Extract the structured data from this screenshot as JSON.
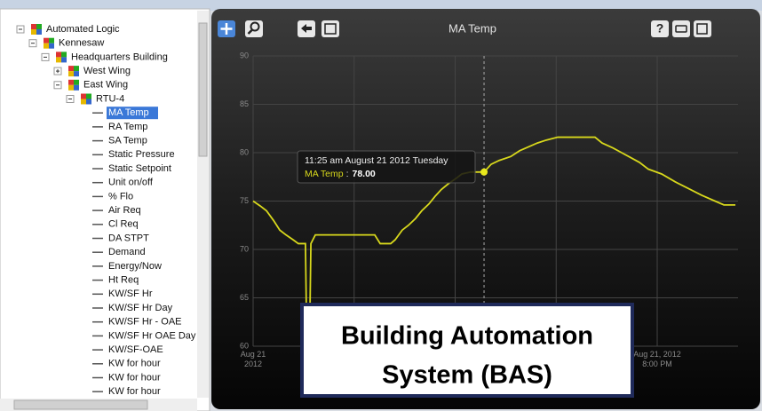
{
  "tree": [
    {
      "label": "Automated Logic",
      "children": [
        {
          "label": "Kennesaw",
          "children": [
            {
              "label": "Headquarters Building",
              "children": [
                {
                  "label": "West Wing",
                  "collapsed": true
                },
                {
                  "label": "East Wing",
                  "children": [
                    {
                      "label": "RTU-4",
                      "children": [
                        {
                          "label": "MA Temp",
                          "selected": true
                        },
                        {
                          "label": "RA Temp"
                        },
                        {
                          "label": "SA Temp"
                        },
                        {
                          "label": "Static Pressure"
                        },
                        {
                          "label": "Static Setpoint"
                        },
                        {
                          "label": "Unit on/off"
                        },
                        {
                          "label": "% Flo"
                        },
                        {
                          "label": "Air Req"
                        },
                        {
                          "label": "Cl Req"
                        },
                        {
                          "label": "DA STPT"
                        },
                        {
                          "label": "Demand"
                        },
                        {
                          "label": "Energy/Now"
                        },
                        {
                          "label": "Ht Req"
                        },
                        {
                          "label": "KW/SF Hr"
                        },
                        {
                          "label": "KW/SF Hr Day"
                        },
                        {
                          "label": "KW/SF Hr - OAE"
                        },
                        {
                          "label": "KW/SF Hr OAE Day"
                        },
                        {
                          "label": "KW/SF-OAE"
                        },
                        {
                          "label": "KW for hour"
                        },
                        {
                          "label": "KW for hour"
                        },
                        {
                          "label": "KW for hour"
                        }
                      ]
                    }
                  ]
                }
              ]
            }
          ]
        }
      ]
    }
  ],
  "toolbar": {
    "help_button": "?"
  },
  "chart_data": {
    "type": "line",
    "title": "MA Temp",
    "x": [
      0,
      0.35,
      0.66,
      1.01,
      1.32,
      1.63,
      1.98,
      2.24,
      2.59,
      2.64,
      2.81,
      2.86,
      3.08,
      6.02,
      6.29,
      6.81,
      7.03,
      7.38,
      7.69,
      8.04,
      8.35,
      8.7,
      9.01,
      9.32,
      9.67,
      10.02,
      10.33,
      10.77,
      11.43,
      11.78,
      12.18,
      12.75,
      13.19,
      13.63,
      14.07,
      14.51,
      15.08,
      16.92,
      17.27,
      17.8,
      18.24,
      18.68,
      19.12,
      19.56,
      20.22,
      20.88,
      21.54,
      22.2,
      22.86,
      23.3,
      23.87
    ],
    "series": [
      {
        "name": "MA Temp",
        "color": "#d8d81c",
        "values": [
          75,
          74.5,
          74,
          73,
          72,
          71.5,
          71,
          70.6,
          70.6,
          63,
          63,
          70.6,
          71.5,
          71.5,
          70.6,
          70.6,
          71,
          72,
          72.5,
          73.2,
          74,
          74.7,
          75.5,
          76.2,
          76.8,
          77.3,
          77.8,
          78,
          78,
          78.8,
          79.2,
          79.6,
          80.2,
          80.6,
          81,
          81.3,
          81.6,
          81.6,
          81,
          80.5,
          80,
          79.5,
          79,
          78.3,
          77.8,
          77,
          76.3,
          75.6,
          75,
          74.6,
          74.6
        ]
      }
    ],
    "xlim": [
      0,
      24
    ],
    "xticks": [
      {
        "value": 0,
        "label": "Aug 21\n2012"
      },
      {
        "value": 20,
        "label": "Aug 21, 2012\n8:00 PM"
      }
    ],
    "xgrid": [
      5,
      10,
      15
    ],
    "ylim": [
      60,
      90
    ],
    "yticks": [
      60,
      65,
      70,
      75,
      80,
      85,
      90
    ],
    "grid": true,
    "tooltip": {
      "time": "11:25 am August 21 2012 Tuesday",
      "separator": ":",
      "x": 11.43,
      "value": 78,
      "value_label": "78.00"
    },
    "annotation": [
      "Building Automation",
      "System (BAS)"
    ]
  }
}
